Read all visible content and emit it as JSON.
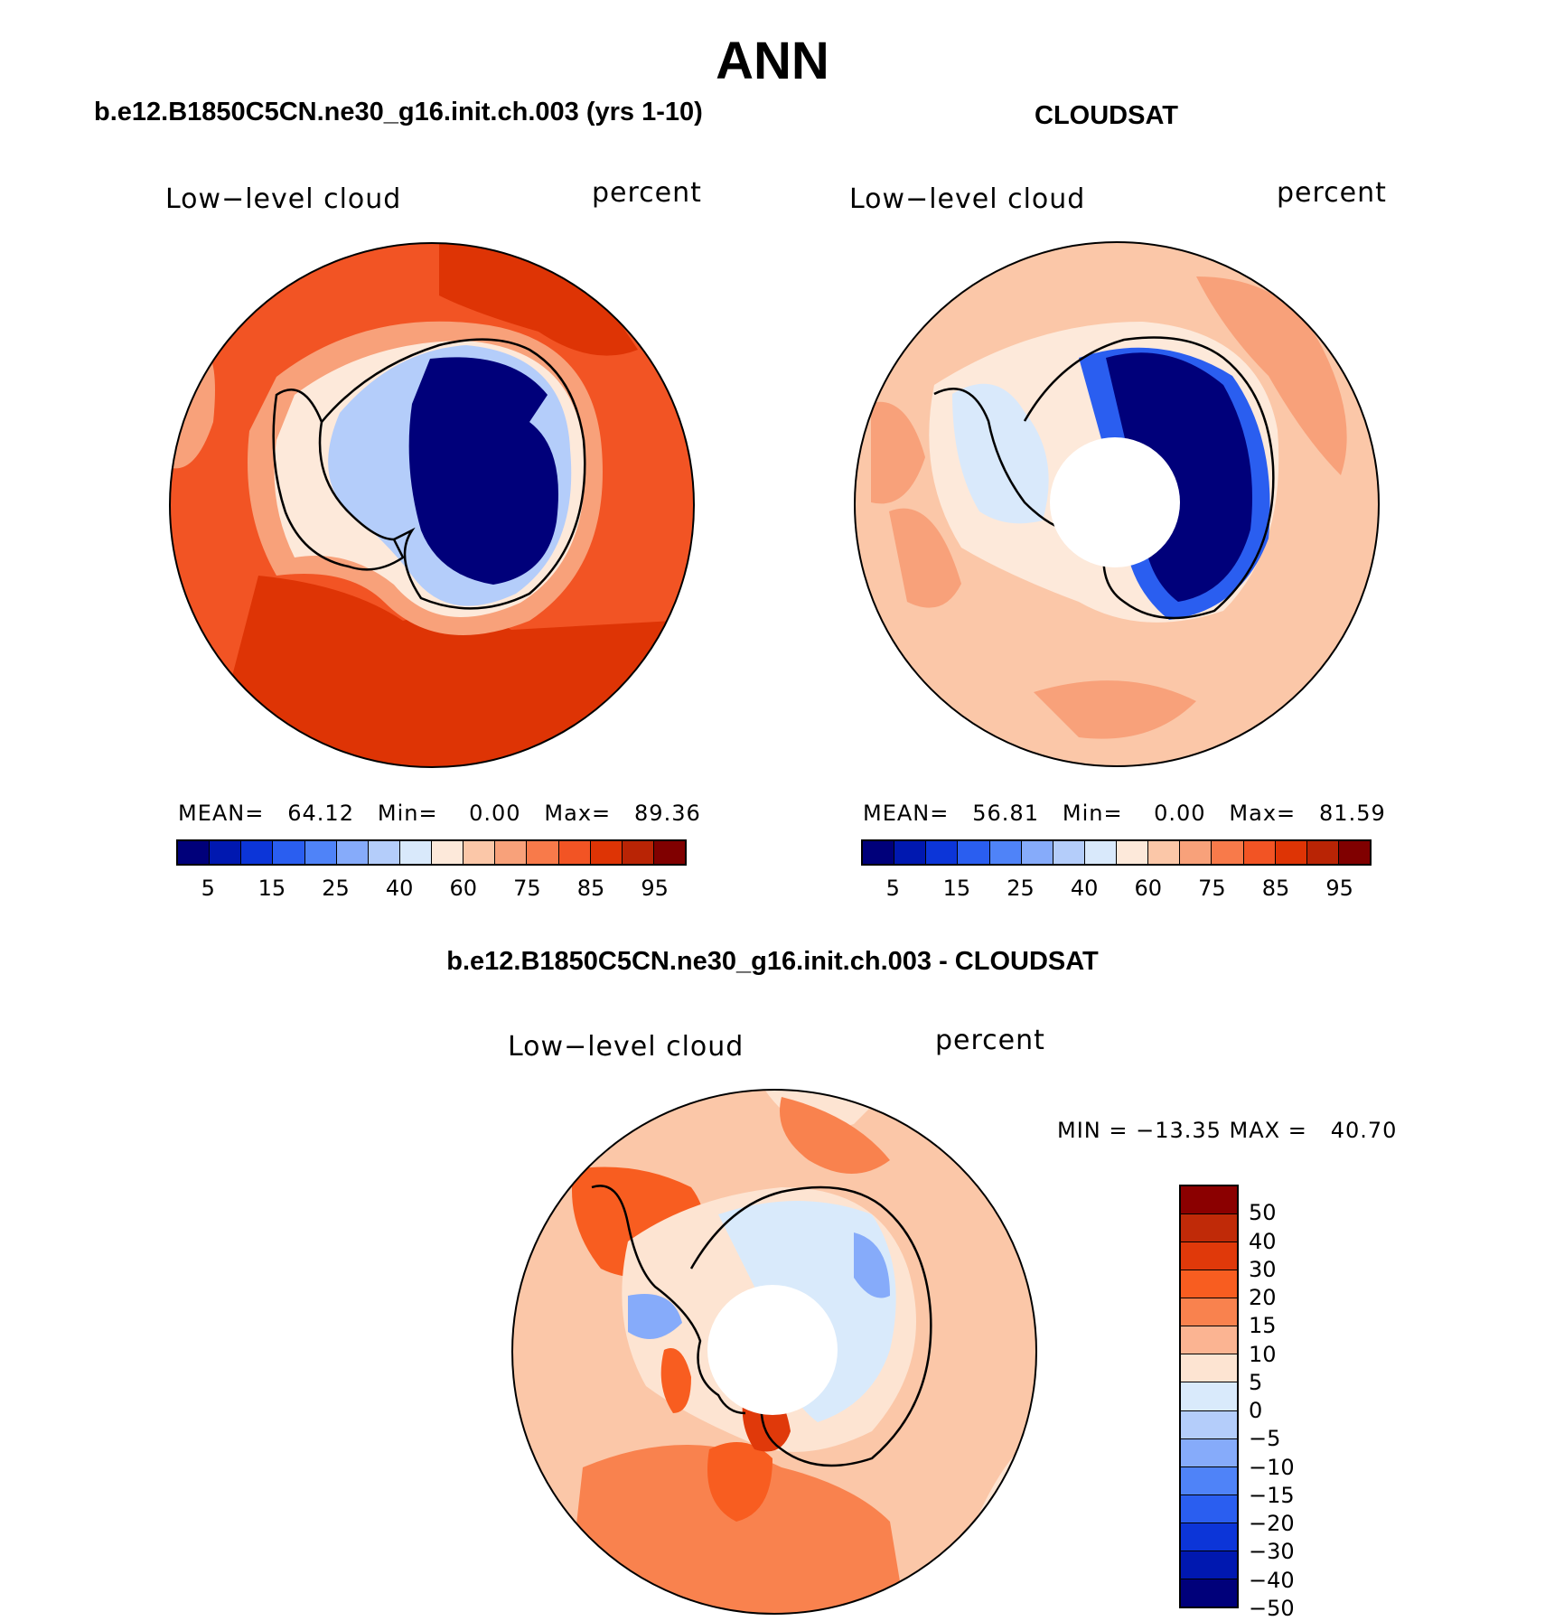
{
  "main_title": "ANN",
  "panels": [
    {
      "title": "b.e12.B1850C5CN.ne30_g16.init.ch.003 (yrs 1-10)",
      "variable_label": "Low−level cloud",
      "units_label": "percent",
      "stats": {
        "mean_label": "MEAN=",
        "mean": "64.12",
        "min_label": "Min=",
        "min": "0.00",
        "max_label": "Max=",
        "max": "89.36"
      }
    },
    {
      "title": "CLOUDSAT",
      "variable_label": "Low−level cloud",
      "units_label": "percent",
      "stats": {
        "mean_label": "MEAN=",
        "mean": "56.81",
        "min_label": "Min=",
        "min": "0.00",
        "max_label": "Max=",
        "max": "81.59"
      }
    },
    {
      "title": "b.e12.B1850C5CN.ne30_g16.init.ch.003 - CLOUDSAT",
      "variable_label": "Low−level cloud",
      "units_label": "percent",
      "stats": {
        "text": "MIN = −13.35 MAX =   40.70"
      }
    }
  ],
  "colorbar_abs": {
    "colors": [
      "#00007a",
      "#0018b0",
      "#0c35d8",
      "#2a5ef0",
      "#4f83f8",
      "#86abfa",
      "#b4cdfa",
      "#d9e9fb",
      "#fde9da",
      "#fbc7a8",
      "#f8a17a",
      "#f87a4a",
      "#f25424",
      "#de3405",
      "#b92405",
      "#800000"
    ],
    "tick_labels": [
      "5",
      "15",
      "25",
      "40",
      "60",
      "75",
      "85",
      "95"
    ]
  },
  "colorbar_diff": {
    "colors": [
      "#8b0000",
      "#c02a08",
      "#e0390a",
      "#f85d20",
      "#f9824e",
      "#fbb492",
      "#fde4d2",
      "#d9eafb",
      "#b4cdfa",
      "#86abfa",
      "#4f83f8",
      "#2a5ef0",
      "#0c35d8",
      "#0018b0",
      "#00007a"
    ],
    "tick_labels": [
      "50",
      "40",
      "30",
      "20",
      "15",
      "10",
      "5",
      "0",
      "−5",
      "−10",
      "−15",
      "−20",
      "−30",
      "−40",
      "−50"
    ]
  }
}
